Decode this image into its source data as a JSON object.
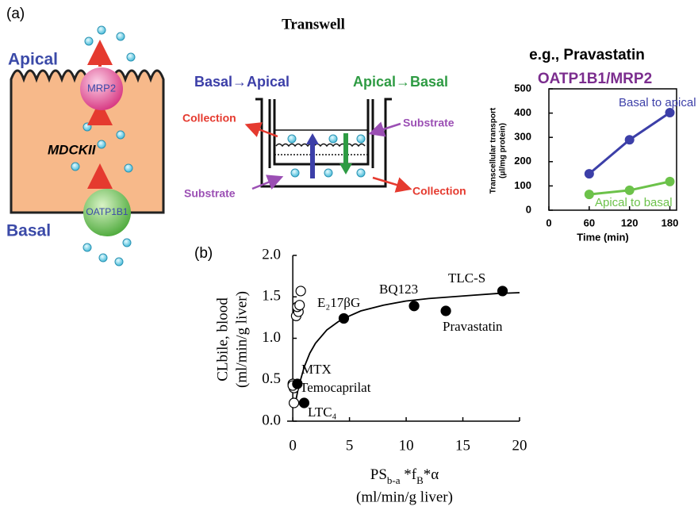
{
  "panel_a": {
    "label": "(a)",
    "cell": {
      "apical": "Apical",
      "basal": "Basal",
      "cell_line": "MDCKII",
      "efflux": "MRP2",
      "uptake": "OATP1B1"
    },
    "transwell": {
      "title": "Transwell",
      "directions": [
        "Basal→Apical",
        "Apical→Basal"
      ],
      "collection": [
        "Collection",
        "Collection"
      ],
      "substrate": [
        "Substrate",
        "Substrate"
      ]
    }
  },
  "chart_data": [
    {
      "type": "line",
      "title": "e.g., Pravastatin",
      "subtitle": "OATP1B1/MRP2",
      "y_label": [
        "Transcellular transport",
        "(μl/mg protein)"
      ],
      "x_label": "Time (min)",
      "x": [
        60,
        120,
        180
      ],
      "series": [
        {
          "name": "Basal to apical",
          "color": "#3c3fa8",
          "values": [
            150,
            290,
            402
          ]
        },
        {
          "name": "Apical to basal",
          "color": "#6cc24a",
          "values": [
            65,
            82,
            118
          ]
        }
      ],
      "xlim": [
        0,
        190
      ],
      "ylim": [
        0,
        500
      ],
      "xticks": [
        0,
        60,
        120,
        180
      ],
      "yticks": [
        0,
        100,
        200,
        300,
        400,
        500
      ]
    },
    {
      "type": "scatter",
      "label": "(b)",
      "y_label": [
        "CLbile, blood",
        "(ml/min/g liver)"
      ],
      "x_label": {
        "parts": [
          "PS",
          "b-a",
          " *f",
          "B",
          "*α"
        ],
        "unit": "(ml/min/g liver)"
      },
      "series": [
        {
          "marker": "open",
          "color": "#ffffff",
          "x": [
            0.3,
            0.5,
            0.4,
            0.6,
            0.7,
            0.0,
            0.1,
            0.1,
            0.0
          ],
          "values": [
            1.27,
            1.32,
            1.38,
            1.4,
            1.57,
            0.45,
            0.4,
            0.22,
            0.43
          ]
        },
        {
          "marker": "filled",
          "color": "#000000",
          "x": [
            0.4,
            1.0,
            4.5,
            10.7,
            13.5,
            18.5
          ],
          "values": [
            0.45,
            0.22,
            1.24,
            1.39,
            1.33,
            1.57
          ]
        }
      ],
      "fit_curve": {
        "color": "#000000",
        "x": [
          0.3,
          0.5,
          1,
          1.5,
          2,
          3,
          4,
          5,
          6,
          8,
          10,
          12,
          14,
          16,
          18,
          20
        ],
        "values": [
          0.27,
          0.41,
          0.65,
          0.82,
          0.94,
          1.1,
          1.2,
          1.27,
          1.33,
          1.4,
          1.45,
          1.48,
          1.5,
          1.52,
          1.54,
          1.55
        ]
      },
      "annotations": [
        "E₂17βG",
        "BQ123",
        "TLC-S",
        "Pravastatin",
        "MTX",
        "Temocaprilat",
        "LTC₄"
      ],
      "xlim": [
        -0.5,
        20
      ],
      "ylim": [
        0,
        2
      ],
      "xticks": [
        0,
        5,
        10,
        15,
        20
      ],
      "yticks": [
        {
          "value": 0,
          "label": "0.0"
        },
        0.5,
        {
          "value": 1,
          "label": "1.0"
        },
        1.5,
        {
          "value": 2,
          "label": "2.0"
        }
      ]
    }
  ]
}
